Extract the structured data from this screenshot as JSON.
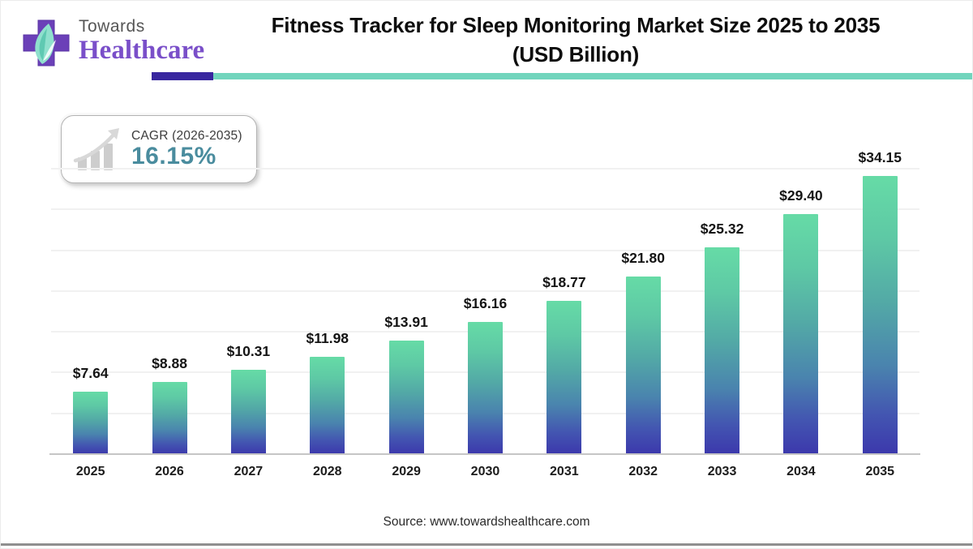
{
  "brand": {
    "line1": "Towards",
    "line2": "Healthcare"
  },
  "header": {
    "title_line1": "Fitness Tracker for Sleep Monitoring Market Size 2025 to 2035",
    "title_line2": "(USD Billion)"
  },
  "cagr_badge": {
    "label": "CAGR (2026-2035)",
    "value": "16.15%"
  },
  "chart_data": {
    "type": "bar",
    "title": "Fitness Tracker for Sleep Monitoring Market Size 2025 to 2035 (USD Billion)",
    "categories": [
      "2025",
      "2026",
      "2027",
      "2028",
      "2029",
      "2030",
      "2031",
      "2032",
      "2033",
      "2034",
      "2035"
    ],
    "values": [
      7.64,
      8.88,
      10.31,
      11.98,
      13.91,
      16.16,
      18.77,
      21.8,
      25.32,
      29.4,
      34.15
    ],
    "value_labels": [
      "$7.64",
      "$8.88",
      "$10.31",
      "$11.98",
      "$13.91",
      "$16.16",
      "$18.77",
      "$21.80",
      "$25.32",
      "$29.40",
      "$34.15"
    ],
    "xlabel": "",
    "ylabel": "",
    "unit": "USD Billion",
    "ylim": [
      0,
      35
    ],
    "gridline_step": 5,
    "grid": "horizontal-faint",
    "legend": "none",
    "bar_gradient_top": "#66dba6",
    "bar_gradient_bottom": "#3c38ac"
  },
  "footer": {
    "source": "Source: www.towardshealthcare.com"
  },
  "colors": {
    "brand_purple": "#7a4fc9",
    "brand_gray": "#565656",
    "logo_cross": "#6b40b8",
    "logo_leaf": "#7fd9c7",
    "divider_indigo": "#38269f",
    "divider_teal": "#72d5bd",
    "cagr_value_teal": "#4a8c9e",
    "axis_gray": "#c6c6c6",
    "title_black": "#0d0d0d"
  }
}
